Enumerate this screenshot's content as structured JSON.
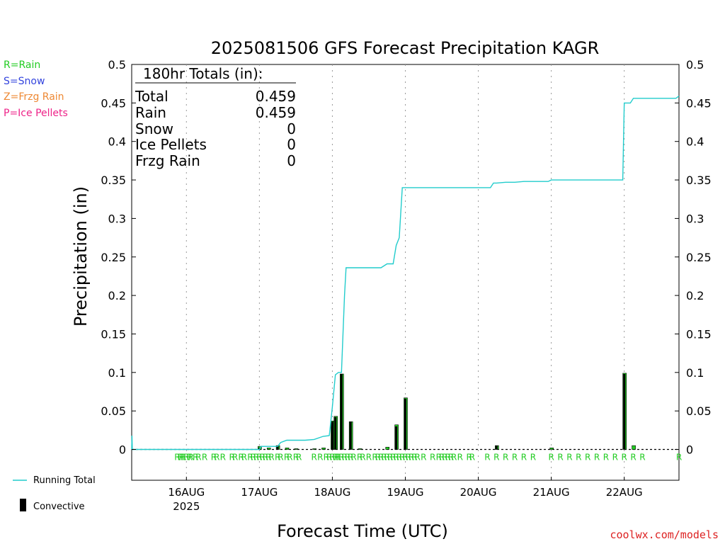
{
  "title": "2025081506 GFS Forecast Precipitation KAGR",
  "website": "coolwx.com/models",
  "legend_ptype": [
    {
      "label": "R=Rain",
      "color": "#22cc22"
    },
    {
      "label": "S=Snow",
      "color": "#3344dd"
    },
    {
      "label": "Z=Frzg Rain",
      "color": "#ee8833"
    },
    {
      "label": "P=Ice Pellets",
      "color": "#ee2288"
    }
  ],
  "legend_lines": {
    "running_total": "Running Total",
    "convective": "Convective"
  },
  "totals_box": {
    "header": "180hr Totals (in):",
    "rows": [
      {
        "label": "Total",
        "value": "0.459"
      },
      {
        "label": "Rain",
        "value": "0.459"
      },
      {
        "label": "Snow",
        "value": "0"
      },
      {
        "label": "Ice Pellets",
        "value": "0"
      },
      {
        "label": "Frzg Rain",
        "value": "0"
      }
    ]
  },
  "colors": {
    "running_total": "#22cccc",
    "bar_fill": "#22cc22",
    "convective": "#000000",
    "ptype_rain": "#22cc22"
  },
  "chart_data": {
    "type": "bar",
    "title": "2025081506 GFS Forecast Precipitation KAGR",
    "xlabel": "Forecast Time (UTC)",
    "ylabel": "Precipitation (in)",
    "xlim_hours": [
      6,
      186
    ],
    "ylim": [
      -0.04,
      0.5
    ],
    "yticks": [
      0,
      0.05,
      0.1,
      0.15,
      0.2,
      0.25,
      0.3,
      0.35,
      0.4,
      0.45,
      0.5
    ],
    "ytick_labels": [
      "0",
      "0.05",
      "0.1",
      "0.15",
      "0.2",
      "0.25",
      "0.3",
      "0.35",
      "0.4",
      "0.45",
      "0.5"
    ],
    "xticks": [
      {
        "hour": 24,
        "label": "16AUG",
        "sublabel": "2025"
      },
      {
        "hour": 48,
        "label": "17AUG",
        "sublabel": ""
      },
      {
        "hour": 72,
        "label": "18AUG",
        "sublabel": ""
      },
      {
        "hour": 96,
        "label": "19AUG",
        "sublabel": ""
      },
      {
        "hour": 120,
        "label": "20AUG",
        "sublabel": ""
      },
      {
        "hour": 144,
        "label": "21AUG",
        "sublabel": ""
      },
      {
        "hour": 168,
        "label": "22AUG",
        "sublabel": ""
      }
    ],
    "grid": "vertical-dotted",
    "series": [
      {
        "name": "Running Total",
        "type": "line",
        "points": [
          [
            6,
            0
          ],
          [
            6.1,
            0.018
          ],
          [
            6.2,
            0
          ],
          [
            48,
            0
          ],
          [
            48.5,
            0.004
          ],
          [
            51,
            0.004
          ],
          [
            54,
            0.004
          ],
          [
            55,
            0.009
          ],
          [
            57,
            0.012
          ],
          [
            63,
            0.012
          ],
          [
            66,
            0.013
          ],
          [
            69,
            0.017
          ],
          [
            71,
            0.018
          ],
          [
            72,
            0.055
          ],
          [
            73,
            0.097
          ],
          [
            74,
            0.1
          ],
          [
            75,
            0.1
          ],
          [
            76,
            0.2
          ],
          [
            76.5,
            0.236
          ],
          [
            78,
            0.236
          ],
          [
            84,
            0.236
          ],
          [
            88,
            0.236
          ],
          [
            90,
            0.241
          ],
          [
            92,
            0.241
          ],
          [
            93,
            0.265
          ],
          [
            94,
            0.275
          ],
          [
            95,
            0.34
          ],
          [
            96,
            0.34
          ],
          [
            120,
            0.34
          ],
          [
            124,
            0.34
          ],
          [
            125,
            0.346
          ],
          [
            126,
            0.346
          ],
          [
            129,
            0.347
          ],
          [
            131,
            0.347
          ],
          [
            132,
            0.347
          ],
          [
            135,
            0.348
          ],
          [
            143,
            0.348
          ],
          [
            144,
            0.35
          ],
          [
            156,
            0.35
          ],
          [
            167.5,
            0.35
          ],
          [
            168,
            0.45
          ],
          [
            170,
            0.45
          ],
          [
            171,
            0.456
          ],
          [
            174,
            0.456
          ],
          [
            185,
            0.456
          ],
          [
            186,
            0.459
          ]
        ]
      },
      {
        "name": "Precipitation",
        "type": "bar",
        "bar_hours": [
          48,
          51,
          54,
          57,
          60,
          66,
          69,
          72,
          73,
          75,
          78,
          81,
          90,
          93,
          96,
          126,
          144,
          168,
          171
        ],
        "bar_values": [
          0.004,
          0.002,
          0.005,
          0.002,
          0.001,
          0.001,
          0.002,
          0.037,
          0.043,
          0.098,
          0.036,
          0.001,
          0.003,
          0.032,
          0.067,
          0.005,
          0.002,
          0.099,
          0.005
        ]
      },
      {
        "name": "Convective",
        "type": "bar",
        "bar_hours": [
          48,
          54,
          72,
          73,
          75,
          78,
          93,
          96,
          126,
          168
        ],
        "bar_values": [
          0.002,
          0.005,
          0.036,
          0.042,
          0.098,
          0.036,
          0.03,
          0.066,
          0.005,
          0.098
        ]
      }
    ],
    "ptype_markers": {
      "symbol": "R",
      "hours": [
        21,
        22,
        22.5,
        23,
        24,
        25,
        25.5,
        27,
        28,
        30,
        33,
        34,
        36,
        39,
        40,
        42,
        43,
        45,
        46,
        47,
        48,
        49,
        50,
        51,
        52,
        54,
        55,
        57,
        58,
        60,
        61,
        66,
        68,
        70,
        71,
        72,
        73,
        73.5,
        74,
        75,
        76,
        77,
        78,
        79,
        81,
        82,
        84,
        86,
        87,
        88,
        89,
        90,
        91,
        92,
        93,
        94,
        95,
        96,
        97,
        98,
        99,
        100,
        102,
        105,
        107,
        108,
        109,
        110,
        111,
        112,
        114,
        117,
        118,
        123,
        126,
        129,
        132,
        135,
        138,
        144,
        147,
        150,
        153,
        156,
        159,
        162,
        165,
        168,
        171,
        174,
        186
      ]
    }
  }
}
